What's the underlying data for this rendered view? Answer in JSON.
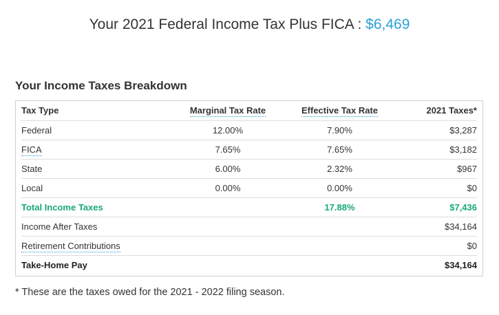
{
  "headline": {
    "text": "Your 2021 Federal Income Tax Plus FICA :",
    "amount": "$6,469"
  },
  "section_title": "Your Income Taxes Breakdown",
  "table": {
    "headers": {
      "type": "Tax Type",
      "marginal": "Marginal Tax Rate",
      "effective": "Effective Tax Rate",
      "taxes": "2021 Taxes*"
    },
    "rows": [
      {
        "type": "Federal",
        "marginal": "12.00%",
        "effective": "7.90%",
        "taxes": "$3,287"
      },
      {
        "type": "FICA",
        "marginal": "7.65%",
        "effective": "7.65%",
        "taxes": "$3,182"
      },
      {
        "type": "State",
        "marginal": "6.00%",
        "effective": "2.32%",
        "taxes": "$967"
      },
      {
        "type": "Local",
        "marginal": "0.00%",
        "effective": "0.00%",
        "taxes": "$0"
      }
    ],
    "total": {
      "type": "Total Income Taxes",
      "marginal": "",
      "effective": "17.88%",
      "taxes": "$7,436"
    },
    "after_taxes": {
      "type": "Income After Taxes",
      "taxes": "$34,164"
    },
    "retirement": {
      "type": "Retirement Contributions",
      "taxes": "$0"
    },
    "take_home": {
      "type": "Take-Home Pay",
      "taxes": "$34,164"
    }
  },
  "footnote": "* These are the taxes owed for the 2021 - 2022 filing season.",
  "colors": {
    "accent_blue": "#2a9fd6",
    "total_green": "#19a974"
  }
}
